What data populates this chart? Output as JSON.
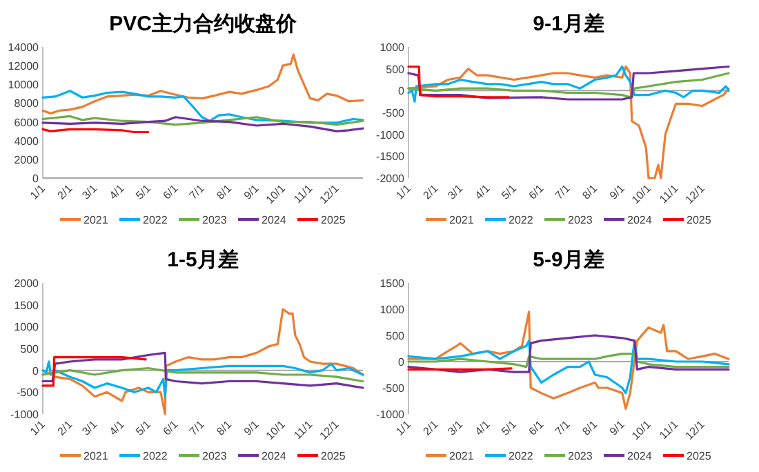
{
  "chart_data": [
    {
      "type": "line",
      "title": "PVC主力合约收盘价",
      "legend": "bottom",
      "xlim": [
        "--01-01",
        "--12-31"
      ],
      "ylim": [
        0,
        14000
      ],
      "yticks": [
        0,
        2000,
        4000,
        6000,
        8000,
        10000,
        12000,
        14000
      ],
      "xticks": [
        {
          "value": "--01-01",
          "label": "1/1"
        },
        {
          "value": "--02-01",
          "label": "2/1"
        },
        {
          "value": "--03-01",
          "label": "3/1"
        },
        {
          "value": "--04-01",
          "label": "4/1"
        },
        {
          "value": "--05-01",
          "label": "5/1"
        },
        {
          "value": "--06-01",
          "label": "6/1"
        },
        {
          "value": "--07-01",
          "label": "7/1"
        },
        {
          "value": "--08-01",
          "label": "8/1"
        },
        {
          "value": "--09-01",
          "label": "9/1"
        },
        {
          "value": "--10-01",
          "label": "10/1"
        },
        {
          "value": "--11-01",
          "label": "11/1"
        },
        {
          "value": "--12-01",
          "label": "12/1"
        }
      ],
      "series": [
        {
          "name": "2021",
          "color": "#ed7d31",
          "x": [
            "--01-01",
            "--01-10",
            "--01-20",
            "--02-01",
            "--02-15",
            "--03-01",
            "--03-15",
            "--04-01",
            "--04-15",
            "--05-01",
            "--05-15",
            "--06-01",
            "--06-15",
            "--07-01",
            "--07-15",
            "--08-01",
            "--08-15",
            "--09-01",
            "--09-15",
            "--09-25",
            "--10-01",
            "--10-10",
            "--10-13",
            "--10-18",
            "--10-25",
            "--11-01",
            "--11-10",
            "--11-20",
            "--12-01",
            "--12-15",
            "--12-31"
          ],
          "values": [
            7200,
            6900,
            7200,
            7300,
            7600,
            8200,
            8700,
            8800,
            8900,
            8800,
            9300,
            8900,
            8600,
            8500,
            8800,
            9200,
            9000,
            9400,
            9800,
            10500,
            12000,
            12200,
            13200,
            11500,
            10000,
            8500,
            8300,
            9000,
            8800,
            8200,
            8300
          ]
        },
        {
          "name": "2022",
          "color": "#00b0f0",
          "x": [
            "--01-01",
            "--01-15",
            "--02-01",
            "--02-15",
            "--03-01",
            "--03-15",
            "--04-01",
            "--04-15",
            "--05-01",
            "--05-15",
            "--06-01",
            "--06-10",
            "--06-20",
            "--07-01",
            "--07-10",
            "--07-20",
            "--08-01",
            "--08-15",
            "--09-01",
            "--10-01",
            "--11-01",
            "--12-01",
            "--12-20",
            "--12-31"
          ],
          "values": [
            8600,
            8700,
            9300,
            8600,
            8800,
            9100,
            9200,
            9000,
            8700,
            8700,
            8600,
            8700,
            7700,
            6500,
            6100,
            6700,
            6800,
            6500,
            6200,
            6100,
            5900,
            5900,
            6300,
            6200
          ]
        },
        {
          "name": "2023",
          "color": "#70ad47",
          "x": [
            "--01-01",
            "--02-01",
            "--02-15",
            "--03-01",
            "--04-01",
            "--05-01",
            "--06-01",
            "--07-01",
            "--08-01",
            "--09-01",
            "--10-01",
            "--11-01",
            "--12-01",
            "--12-31"
          ],
          "values": [
            6300,
            6600,
            6200,
            6400,
            6100,
            6000,
            5700,
            5900,
            6200,
            6500,
            6000,
            6000,
            5700,
            6100
          ]
        },
        {
          "name": "2024",
          "color": "#7030a0",
          "x": [
            "--01-01",
            "--02-01",
            "--03-01",
            "--04-01",
            "--05-01",
            "--05-20",
            "--06-01",
            "--07-01",
            "--08-01",
            "--09-01",
            "--10-01",
            "--11-01",
            "--12-01",
            "--12-15",
            "--12-31"
          ],
          "values": [
            5900,
            5800,
            5900,
            5800,
            6000,
            6100,
            6500,
            6100,
            6000,
            5600,
            5800,
            5500,
            5000,
            5100,
            5300
          ]
        },
        {
          "name": "2025",
          "color": "#ff0000",
          "x": [
            "--01-01",
            "--01-10",
            "--02-01",
            "--03-01",
            "--04-01",
            "--04-15",
            "--05-01"
          ],
          "values": [
            5200,
            5000,
            5200,
            5200,
            5100,
            4900,
            4900
          ]
        }
      ]
    },
    {
      "type": "line",
      "title": "9-1月差",
      "legend": "bottom",
      "xlim": [
        "--01-01",
        "--12-31"
      ],
      "ylim": [
        -2000,
        1000
      ],
      "yticks": [
        -2000,
        -1500,
        -1000,
        -500,
        0,
        500,
        1000
      ],
      "xticks": [
        {
          "value": "--01-01",
          "label": "1/1"
        },
        {
          "value": "--02-01",
          "label": "2/1"
        },
        {
          "value": "--03-01",
          "label": "3/1"
        },
        {
          "value": "--04-01",
          "label": "4/1"
        },
        {
          "value": "--05-01",
          "label": "5/1"
        },
        {
          "value": "--06-01",
          "label": "6/1"
        },
        {
          "value": "--07-01",
          "label": "7/1"
        },
        {
          "value": "--08-01",
          "label": "8/1"
        },
        {
          "value": "--09-01",
          "label": "9/1"
        },
        {
          "value": "--10-01",
          "label": "10/1"
        },
        {
          "value": "--11-01",
          "label": "11/1"
        },
        {
          "value": "--12-01",
          "label": "12/1"
        }
      ],
      "series": [
        {
          "name": "2021",
          "color": "#ed7d31",
          "x": [
            "--01-01",
            "--02-01",
            "--02-15",
            "--03-01",
            "--03-10",
            "--03-20",
            "--04-01",
            "--05-01",
            "--06-01",
            "--06-15",
            "--07-01",
            "--07-15",
            "--08-01",
            "--08-15",
            "--09-01",
            "--09-05",
            "--09-10",
            "--09-12",
            "--09-20",
            "--09-28",
            "--10-01",
            "--10-08",
            "--10-12",
            "--10-15",
            "--10-20",
            "--10-25",
            "--11-01",
            "--11-15",
            "--12-01",
            "--12-15",
            "--12-25",
            "--12-31"
          ],
          "values": [
            50,
            100,
            250,
            300,
            500,
            350,
            350,
            250,
            350,
            400,
            400,
            350,
            300,
            350,
            300,
            550,
            400,
            -700,
            -800,
            -1300,
            -2000,
            -2000,
            -1700,
            -2000,
            -1000,
            -700,
            -300,
            -300,
            -350,
            -200,
            -100,
            50
          ]
        },
        {
          "name": "2022",
          "color": "#00b0f0",
          "x": [
            "--01-01",
            "--01-05",
            "--01-08",
            "--01-10",
            "--02-01",
            "--02-15",
            "--03-01",
            "--03-15",
            "--04-01",
            "--04-15",
            "--05-01",
            "--06-01",
            "--06-15",
            "--07-01",
            "--07-15",
            "--08-01",
            "--08-15",
            "--08-25",
            "--09-01",
            "--09-05",
            "--09-10",
            "--09-15",
            "--10-01",
            "--10-10",
            "--10-20",
            "--11-01",
            "--11-10",
            "--11-20",
            "--12-01",
            "--12-20",
            "--12-28",
            "--12-31"
          ],
          "values": [
            -50,
            0,
            -250,
            100,
            150,
            150,
            250,
            200,
            150,
            150,
            100,
            200,
            150,
            150,
            50,
            250,
            300,
            350,
            550,
            350,
            200,
            -100,
            -100,
            -50,
            0,
            -50,
            -150,
            0,
            0,
            -50,
            100,
            0
          ]
        },
        {
          "name": "2023",
          "color": "#70ad47",
          "x": [
            "--01-01",
            "--02-01",
            "--03-01",
            "--04-01",
            "--05-01",
            "--06-01",
            "--07-01",
            "--08-01",
            "--09-01",
            "--09-10",
            "--09-15",
            "--10-01",
            "--11-01",
            "--12-01",
            "--12-31"
          ],
          "values": [
            50,
            0,
            50,
            50,
            0,
            0,
            -50,
            -50,
            -100,
            -150,
            50,
            100,
            200,
            250,
            400
          ]
        },
        {
          "name": "2024",
          "color": "#7030a0",
          "x": [
            "--01-01",
            "--01-12",
            "--01-15",
            "--02-01",
            "--03-01",
            "--04-01",
            "--05-01",
            "--06-01",
            "--07-01",
            "--08-01",
            "--09-01",
            "--09-12",
            "--09-14",
            "--10-01",
            "--11-01",
            "--12-01",
            "--12-31"
          ],
          "values": [
            400,
            350,
            -100,
            -100,
            -100,
            -170,
            -160,
            -150,
            -200,
            -200,
            -200,
            -150,
            400,
            400,
            450,
            500,
            550
          ]
        },
        {
          "name": "2025",
          "color": "#ff0000",
          "x": [
            "--01-01",
            "--01-13",
            "--01-14",
            "--02-01",
            "--03-01",
            "--04-01",
            "--04-25"
          ],
          "values": [
            550,
            550,
            -100,
            -130,
            -130,
            -150,
            -150
          ]
        }
      ]
    },
    {
      "type": "line",
      "title": "1-5月差",
      "legend": "bottom",
      "xlim": [
        "--01-01",
        "--12-31"
      ],
      "ylim": [
        -1000,
        2000
      ],
      "yticks": [
        -1000,
        -500,
        0,
        500,
        1000,
        1500,
        2000
      ],
      "xticks": [
        {
          "value": "--01-01",
          "label": "1/1"
        },
        {
          "value": "--02-01",
          "label": "2/1"
        },
        {
          "value": "--03-01",
          "label": "3/1"
        },
        {
          "value": "--04-01",
          "label": "4/1"
        },
        {
          "value": "--05-01",
          "label": "5/1"
        },
        {
          "value": "--06-01",
          "label": "6/1"
        },
        {
          "value": "--07-01",
          "label": "7/1"
        },
        {
          "value": "--08-01",
          "label": "8/1"
        },
        {
          "value": "--09-01",
          "label": "9/1"
        },
        {
          "value": "--10-01",
          "label": "10/1"
        },
        {
          "value": "--11-01",
          "label": "11/1"
        },
        {
          "value": "--12-01",
          "label": "12/1"
        }
      ],
      "series": [
        {
          "name": "2021",
          "color": "#ed7d31",
          "x": [
            "--01-01",
            "--01-10",
            "--01-15",
            "--02-01",
            "--02-15",
            "--03-01",
            "--03-15",
            "--04-01",
            "--04-05",
            "--04-20",
            "--05-01",
            "--05-15",
            "--05-20",
            "--05-21",
            "--06-01",
            "--06-15",
            "--07-01",
            "--07-15",
            "--08-01",
            "--08-15",
            "--09-01",
            "--09-15",
            "--09-25",
            "--10-01",
            "--10-08",
            "--10-12",
            "--10-15",
            "--10-20",
            "--10-25",
            "--11-01",
            "--11-15",
            "--12-01",
            "--12-20",
            "--12-31"
          ],
          "values": [
            -100,
            -50,
            -150,
            -200,
            -350,
            -600,
            -500,
            -700,
            -500,
            -400,
            -500,
            -500,
            -1000,
            100,
            200,
            300,
            250,
            250,
            300,
            300,
            400,
            550,
            600,
            1400,
            1300,
            1300,
            800,
            600,
            300,
            200,
            150,
            150,
            50,
            -100
          ]
        },
        {
          "name": "2022",
          "color": "#00b0f0",
          "x": [
            "--01-01",
            "--01-05",
            "--01-08",
            "--01-10",
            "--01-15",
            "--02-01",
            "--02-15",
            "--03-01",
            "--03-15",
            "--04-01",
            "--04-15",
            "--05-01",
            "--05-10",
            "--05-18",
            "--05-20",
            "--05-22",
            "--06-01",
            "--07-01",
            "--08-01",
            "--09-01",
            "--10-01",
            "--10-15",
            "--11-01",
            "--11-15",
            "--11-25",
            "--12-01",
            "--12-15",
            "--12-31"
          ],
          "values": [
            0,
            -50,
            200,
            -100,
            0,
            -150,
            -250,
            -400,
            -300,
            -400,
            -500,
            -400,
            -500,
            -200,
            -600,
            0,
            0,
            50,
            100,
            100,
            100,
            50,
            -50,
            0,
            150,
            0,
            50,
            -100
          ]
        },
        {
          "name": "2023",
          "color": "#70ad47",
          "x": [
            "--01-01",
            "--02-01",
            "--03-01",
            "--04-01",
            "--05-01",
            "--06-01",
            "--07-01",
            "--08-01",
            "--09-01",
            "--10-01",
            "--11-01",
            "--12-01",
            "--12-31"
          ],
          "values": [
            -100,
            0,
            -100,
            0,
            50,
            -50,
            -50,
            -50,
            -50,
            -100,
            -100,
            -150,
            -250
          ]
        },
        {
          "name": "2024",
          "color": "#7030a0",
          "x": [
            "--01-01",
            "--01-12",
            "--01-15",
            "--02-01",
            "--03-01",
            "--04-01",
            "--05-01",
            "--05-20",
            "--05-21",
            "--06-01",
            "--07-01",
            "--08-01",
            "--09-01",
            "--10-01",
            "--11-01",
            "--12-01",
            "--12-31"
          ],
          "values": [
            -250,
            -250,
            150,
            200,
            250,
            250,
            350,
            400,
            -200,
            -250,
            -300,
            -250,
            -250,
            -300,
            -350,
            -300,
            -400
          ]
        },
        {
          "name": "2025",
          "color": "#ff0000",
          "x": [
            "--01-01",
            "--01-13",
            "--01-14",
            "--02-01",
            "--03-01",
            "--04-01",
            "--04-28"
          ],
          "values": [
            -350,
            -350,
            300,
            300,
            300,
            300,
            250
          ]
        }
      ]
    },
    {
      "type": "line",
      "title": "5-9月差",
      "legend": "bottom",
      "xlim": [
        "--01-01",
        "--12-31"
      ],
      "ylim": [
        -1000,
        1500
      ],
      "yticks": [
        -1000,
        -500,
        0,
        500,
        1000,
        1500
      ],
      "xticks": [
        {
          "value": "--01-01",
          "label": "1/1"
        },
        {
          "value": "--02-01",
          "label": "2/1"
        },
        {
          "value": "--03-01",
          "label": "3/1"
        },
        {
          "value": "--04-01",
          "label": "4/1"
        },
        {
          "value": "--05-01",
          "label": "5/1"
        },
        {
          "value": "--06-01",
          "label": "6/1"
        },
        {
          "value": "--07-01",
          "label": "7/1"
        },
        {
          "value": "--08-01",
          "label": "8/1"
        },
        {
          "value": "--09-01",
          "label": "9/1"
        },
        {
          "value": "--10-01",
          "label": "10/1"
        },
        {
          "value": "--11-01",
          "label": "11/1"
        },
        {
          "value": "--12-01",
          "label": "12/1"
        }
      ],
      "series": [
        {
          "name": "2021",
          "color": "#ed7d31",
          "x": [
            "--01-01",
            "--02-01",
            "--02-10",
            "--02-25",
            "--03-01",
            "--03-15",
            "--04-01",
            "--04-15",
            "--05-01",
            "--05-10",
            "--05-18",
            "--05-20",
            "--06-01",
            "--06-15",
            "--07-01",
            "--07-15",
            "--08-01",
            "--08-05",
            "--08-15",
            "--09-01",
            "--09-05",
            "--09-10",
            "--09-18",
            "--10-01",
            "--10-15",
            "--10-18",
            "--10-22",
            "--11-01",
            "--11-15",
            "--12-01",
            "--12-15",
            "--12-31"
          ],
          "values": [
            50,
            50,
            150,
            300,
            350,
            150,
            200,
            150,
            200,
            300,
            950,
            -500,
            -600,
            -700,
            -600,
            -500,
            -400,
            -500,
            -500,
            -600,
            -900,
            -600,
            400,
            650,
            550,
            700,
            200,
            200,
            50,
            100,
            150,
            50
          ]
        },
        {
          "name": "2022",
          "color": "#00b0f0",
          "x": [
            "--01-01",
            "--02-01",
            "--03-01",
            "--04-01",
            "--04-15",
            "--05-01",
            "--05-15",
            "--05-18",
            "--05-20",
            "--06-01",
            "--06-15",
            "--07-01",
            "--07-15",
            "--07-25",
            "--08-01",
            "--08-15",
            "--09-01",
            "--09-05",
            "--09-10",
            "--09-15",
            "--09-18",
            "--10-01",
            "--11-01",
            "--12-01",
            "--12-31"
          ],
          "values": [
            100,
            50,
            100,
            200,
            50,
            200,
            300,
            400,
            -100,
            -400,
            -250,
            -100,
            -100,
            0,
            -250,
            -300,
            -500,
            -600,
            -300,
            400,
            50,
            50,
            0,
            0,
            -50
          ]
        },
        {
          "name": "2023",
          "color": "#70ad47",
          "x": [
            "--01-01",
            "--02-01",
            "--03-01",
            "--04-01",
            "--05-01",
            "--05-15",
            "--05-18",
            "--06-01",
            "--07-01",
            "--08-01",
            "--08-15",
            "--09-01",
            "--09-15",
            "--09-18",
            "--10-01",
            "--11-01",
            "--12-01",
            "--12-31"
          ],
          "values": [
            0,
            0,
            50,
            0,
            -50,
            -100,
            100,
            50,
            50,
            50,
            100,
            150,
            150,
            0,
            -50,
            -100,
            -100,
            -100
          ]
        },
        {
          "name": "2024",
          "color": "#7030a0",
          "x": [
            "--01-01",
            "--02-01",
            "--03-01",
            "--04-01",
            "--05-01",
            "--05-18",
            "--05-20",
            "--06-01",
            "--07-01",
            "--08-01",
            "--09-01",
            "--09-15",
            "--09-18",
            "--10-01",
            "--11-01",
            "--12-01",
            "--12-31"
          ],
          "values": [
            -100,
            -150,
            -200,
            -150,
            -200,
            -200,
            350,
            400,
            450,
            500,
            450,
            400,
            -150,
            -100,
            -150,
            -150,
            -150
          ]
        },
        {
          "name": "2025",
          "color": "#ff0000",
          "x": [
            "--01-01",
            "--02-01",
            "--03-01",
            "--04-01",
            "--04-28"
          ],
          "values": [
            -150,
            -150,
            -150,
            -150,
            -130
          ]
        }
      ]
    }
  ]
}
